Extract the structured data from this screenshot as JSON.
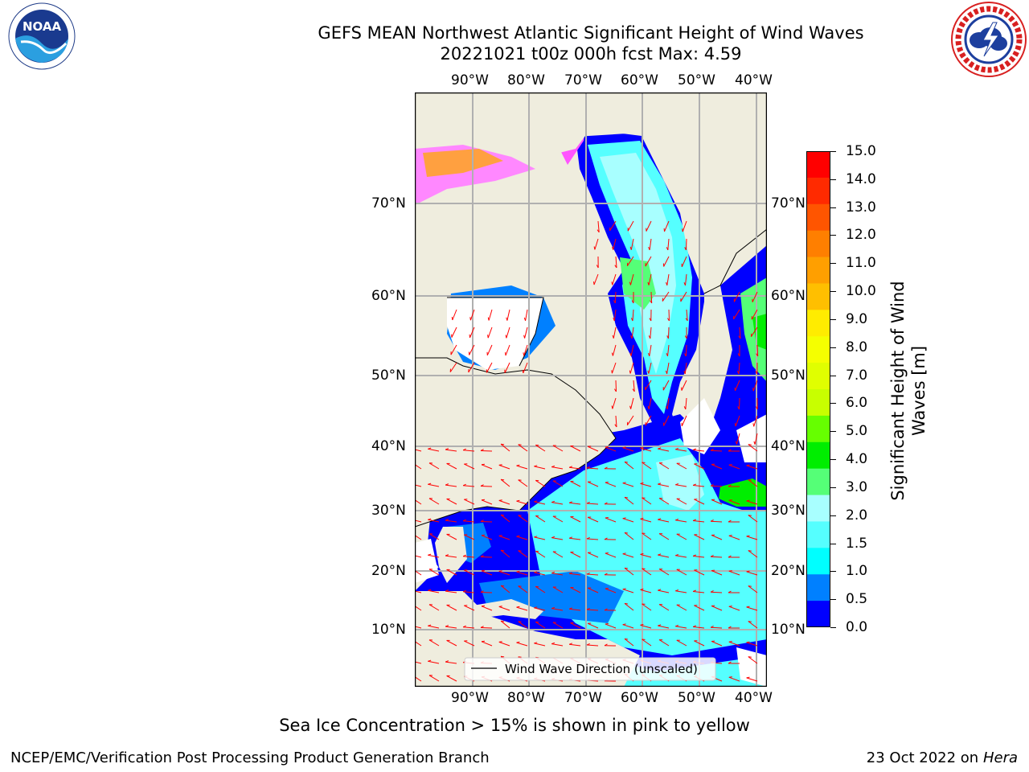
{
  "title": {
    "line1": "GEFS MEAN Northwest Atlantic Significant Height of Wind Waves",
    "line2": "20221021 t00z 000h fcst   Max: 4.59"
  },
  "logos": {
    "left": {
      "name": "NOAA",
      "text": "NOAA",
      "ring_text": "NATIONAL OCEANIC AND ATMOSPHERIC ADMINISTRATION · U.S. DEPARTMENT OF COMMERCE"
    },
    "right": {
      "name": "National Weather Service",
      "ring_text": "NATIONAL WEATHER SERVICE"
    }
  },
  "map": {
    "lon_labels": [
      "90°W",
      "80°W",
      "70°W",
      "60°W",
      "50°W",
      "40°W"
    ],
    "lat_labels": [
      "70°N",
      "60°N",
      "50°N",
      "40°N",
      "30°N",
      "20°N",
      "10°N"
    ],
    "legend_label": "Wind Wave Direction (unscaled)",
    "land_color": "#efedde",
    "ocean_no_data_color": "#ffffff",
    "arrow_color": "#ff0000"
  },
  "colorbar": {
    "label_line1": "Significant Height of Wind",
    "label_line2": "Waves [m]",
    "ticks": [
      "15.0",
      "14.0",
      "13.0",
      "12.0",
      "11.0",
      "10.0",
      "9.0",
      "8.0",
      "7.0",
      "6.0",
      "5.0",
      "4.0",
      "3.0",
      "2.0",
      "1.5",
      "1.0",
      "0.5",
      "0.0"
    ],
    "colors_top_to_bottom": [
      "#ff0000",
      "#ff2a00",
      "#ff5500",
      "#ff7f00",
      "#ff9f00",
      "#ffbf00",
      "#ffec00",
      "#f5ff00",
      "#e0ff00",
      "#c8ff00",
      "#66ff00",
      "#00ee00",
      "#55ff77",
      "#a8ffff",
      "#55ffff",
      "#00ffff",
      "#0080ff",
      "#0000ff"
    ]
  },
  "caption": "Sea Ice Concentration > 15% is shown in pink to yellow",
  "footer": {
    "left": "NCEP/EMC/Verification Post Processing Product Generation Branch",
    "right_date": "23 Oct 2022 on ",
    "right_host": "Hera"
  }
}
